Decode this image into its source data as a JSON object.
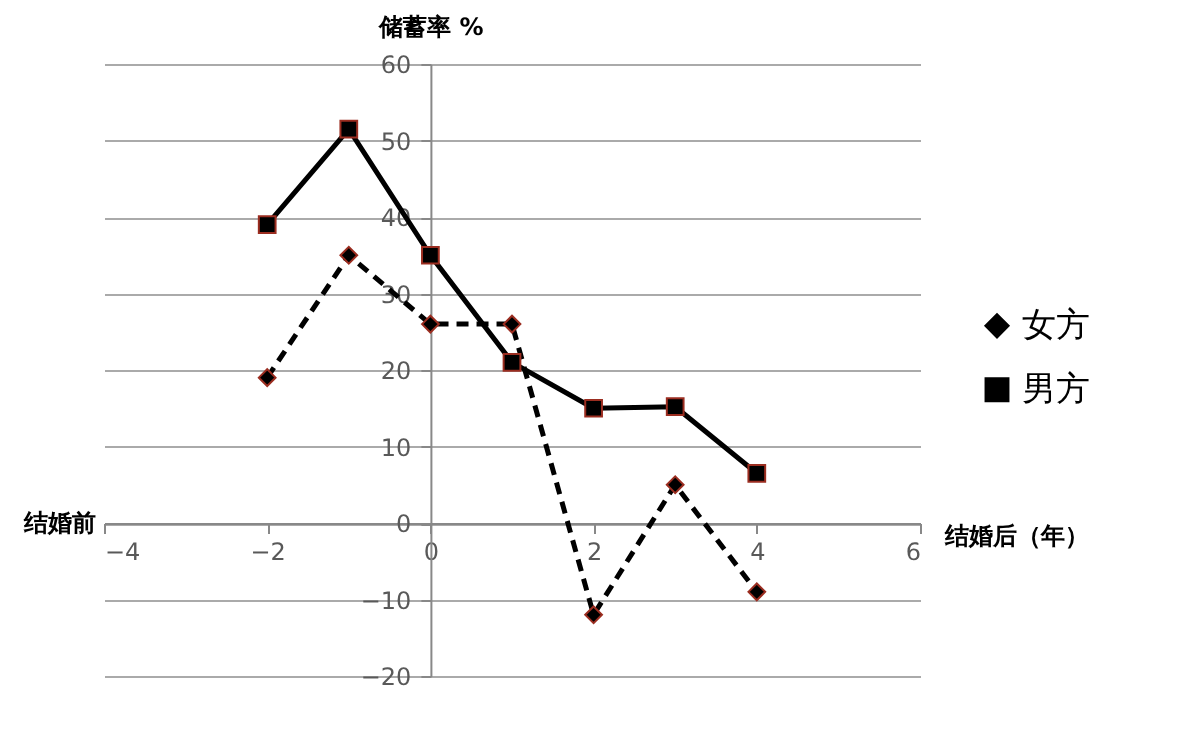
{
  "chart_data": {
    "type": "line",
    "ylabel": "储蓄率 %",
    "xlabel": "结婚后（年）",
    "annotations": [
      "结婚前"
    ],
    "x": [
      -2,
      -1,
      0,
      1,
      2,
      3,
      4
    ],
    "series": [
      {
        "name": "女方",
        "color": "#000000",
        "marker": "diamond",
        "line_style": "dashed",
        "values": [
          19,
          35,
          26,
          26,
          -12,
          5,
          -9
        ]
      },
      {
        "name": "男方",
        "color": "#000000",
        "marker": "square",
        "line_style": "solid",
        "values": [
          39,
          51.5,
          35,
          21,
          15,
          15.2,
          6.5
        ]
      }
    ],
    "xlim": [
      -4,
      6
    ],
    "xticks": [
      -4,
      -2,
      0,
      2,
      4,
      6
    ],
    "ylim": [
      -20,
      60
    ],
    "yticks": [
      -20,
      -10,
      0,
      10,
      20,
      30,
      40,
      50,
      60
    ],
    "grid": "y",
    "legend": "right"
  }
}
